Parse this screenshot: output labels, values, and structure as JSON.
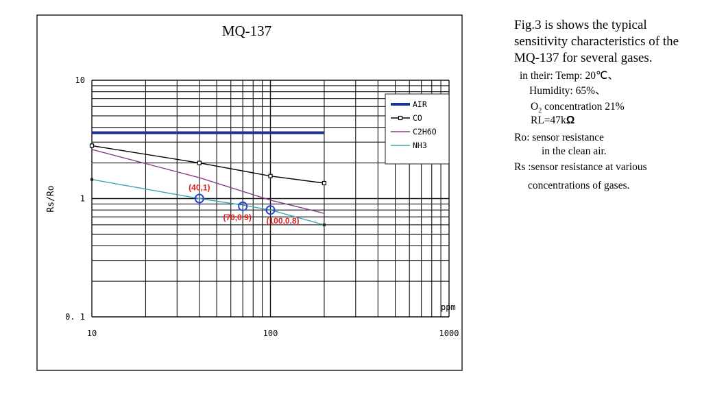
{
  "chart_data": {
    "type": "line",
    "title": "MQ-137",
    "xlabel": "ppm",
    "ylabel": "Rs/Ro",
    "x_scale": "log",
    "y_scale": "log",
    "xlim": [
      10,
      1000
    ],
    "ylim": [
      0.1,
      10
    ],
    "x_ticks": [
      {
        "value": 10,
        "label": "10"
      },
      {
        "value": 100,
        "label": "100"
      },
      {
        "value": 1000,
        "label": "1000"
      }
    ],
    "y_ticks": [
      {
        "value": 10,
        "label": "10"
      },
      {
        "value": 1,
        "label": "1"
      },
      {
        "value": 0.1,
        "label": "0. 1"
      }
    ],
    "grid": true,
    "legend": "top-right",
    "series": [
      {
        "name": "AIR",
        "color": "#1f2f8f",
        "marker": "none",
        "x": [
          10,
          200
        ],
        "y": [
          3.6,
          3.6
        ]
      },
      {
        "name": "CO",
        "color": "#000000",
        "marker": "square",
        "x": [
          10,
          40,
          100,
          200
        ],
        "y": [
          2.8,
          2.0,
          1.55,
          1.35
        ]
      },
      {
        "name": "C2H6O",
        "color": "#8a3c8a",
        "marker": "none",
        "x": [
          10,
          40,
          100,
          200
        ],
        "y": [
          2.6,
          1.5,
          0.97,
          0.75
        ]
      },
      {
        "name": "NH3",
        "color": "#3aa6b4",
        "marker": "none",
        "x": [
          10,
          40,
          70,
          100,
          200
        ],
        "y": [
          1.45,
          1.0,
          0.88,
          0.8,
          0.6
        ]
      }
    ],
    "annotations": [
      {
        "text": "(40,1)",
        "x": 40,
        "y": 1.0
      },
      {
        "text": "(70,0.9)",
        "x": 70,
        "y": 0.86
      },
      {
        "text": "(100,0.8)",
        "x": 100,
        "y": 0.8
      }
    ]
  },
  "side_text": {
    "intro": "Fig.3 is shows the typical sensitivity characteristics of the MQ-137 for several gases.",
    "temp": "in their: Temp: 20℃、",
    "humidity": "Humidity: 65%、",
    "o2_prefix": "O",
    "o2_sub": "2",
    "o2_suffix": " concentration 21%",
    "rl_prefix": "RL=47k",
    "rl_unit": "Ω",
    "ro_line1": "Ro: sensor resistance",
    "ro_line2": "in the clean air.",
    "rs_line1": "Rs :sensor resistance at various",
    "rs_line2": "concentrations of gases."
  }
}
